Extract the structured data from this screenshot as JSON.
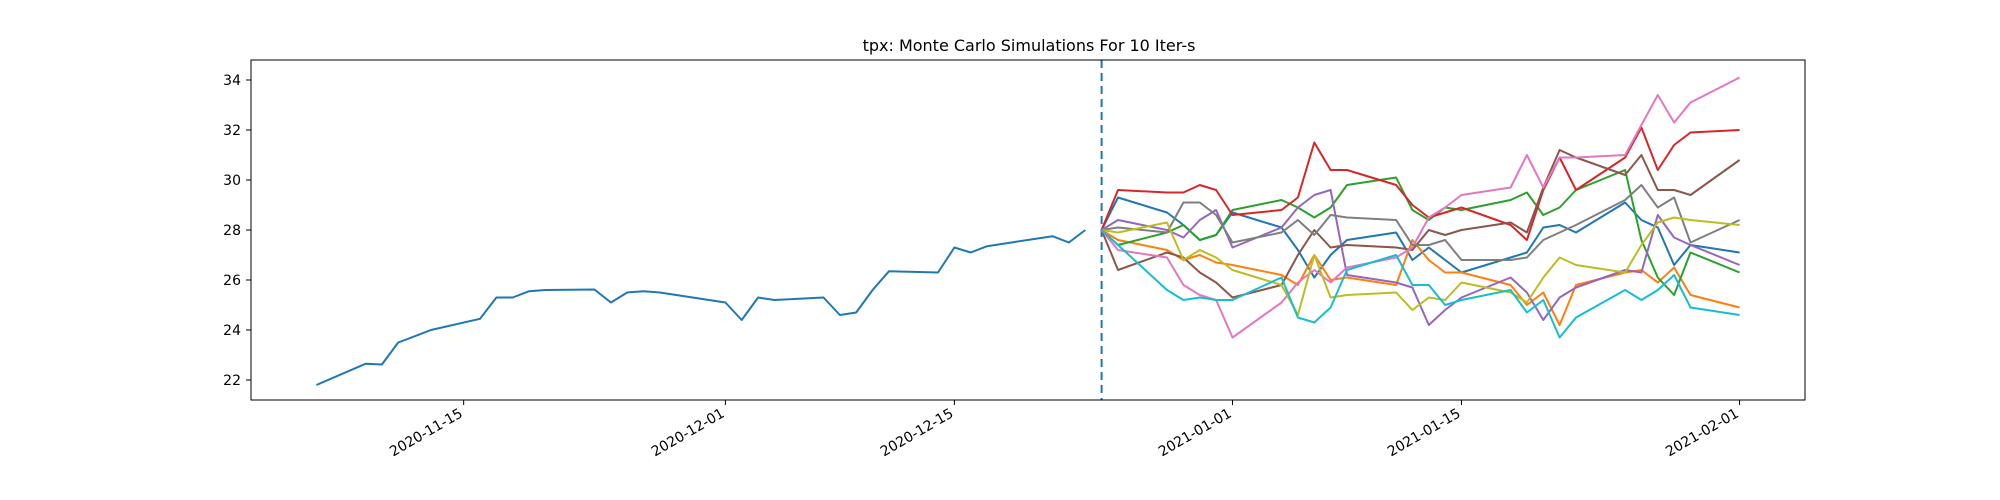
{
  "chart_data": {
    "type": "line",
    "title": "tpx: Monte Carlo Simulations For 10 Iter-s",
    "xlabel": "",
    "ylabel": "",
    "x_axis_type": "date",
    "xlim": [
      "2020-11-02",
      "2021-02-05"
    ],
    "ylim": [
      21.2,
      34.8
    ],
    "x_ticks": [
      "2020-11-15",
      "2020-12-01",
      "2020-12-15",
      "2021-01-01",
      "2021-01-15",
      "2021-02-01"
    ],
    "y_ticks": [
      22,
      24,
      26,
      28,
      30,
      32,
      34
    ],
    "grid": false,
    "legend": false,
    "vline": {
      "x": "2020-12-24",
      "style": "dashed",
      "color": "#1f77b4"
    },
    "history": {
      "color": "#1f77b4",
      "points": [
        [
          "2020-11-06",
          21.8
        ],
        [
          "2020-11-09",
          22.65
        ],
        [
          "2020-11-10",
          22.62
        ],
        [
          "2020-11-11",
          23.5
        ],
        [
          "2020-11-12",
          23.75
        ],
        [
          "2020-11-13",
          24.0
        ],
        [
          "2020-11-16",
          24.45
        ],
        [
          "2020-11-17",
          25.3
        ],
        [
          "2020-11-18",
          25.3
        ],
        [
          "2020-11-19",
          25.55
        ],
        [
          "2020-11-20",
          25.6
        ],
        [
          "2020-11-23",
          25.62
        ],
        [
          "2020-11-24",
          25.1
        ],
        [
          "2020-11-25",
          25.5
        ],
        [
          "2020-11-26",
          25.55
        ],
        [
          "2020-11-27",
          25.5
        ],
        [
          "2020-11-30",
          25.2
        ],
        [
          "2020-12-01",
          25.1
        ],
        [
          "2020-12-02",
          24.4
        ],
        [
          "2020-12-03",
          25.3
        ],
        [
          "2020-12-04",
          25.2
        ],
        [
          "2020-12-07",
          25.3
        ],
        [
          "2020-12-08",
          24.6
        ],
        [
          "2020-12-09",
          24.7
        ],
        [
          "2020-12-10",
          25.6
        ],
        [
          "2020-12-11",
          26.35
        ],
        [
          "2020-12-14",
          26.3
        ],
        [
          "2020-12-15",
          27.3
        ],
        [
          "2020-12-16",
          27.1
        ],
        [
          "2020-12-17",
          27.35
        ],
        [
          "2020-12-21",
          27.75
        ],
        [
          "2020-12-22",
          27.5
        ],
        [
          "2020-12-23",
          28.0
        ]
      ]
    },
    "sim_dates": [
      "2020-12-24",
      "2020-12-25",
      "2020-12-28",
      "2020-12-29",
      "2020-12-30",
      "2020-12-31",
      "2021-01-01",
      "2021-01-04",
      "2021-01-05",
      "2021-01-06",
      "2021-01-07",
      "2021-01-08",
      "2021-01-11",
      "2021-01-12",
      "2021-01-13",
      "2021-01-14",
      "2021-01-15",
      "2021-01-18",
      "2021-01-19",
      "2021-01-20",
      "2021-01-21",
      "2021-01-22",
      "2021-01-25",
      "2021-01-26",
      "2021-01-27",
      "2021-01-28",
      "2021-01-29",
      "2021-02-01"
    ],
    "series": [
      {
        "color": "#1f77b4",
        "values": [
          28.0,
          29.3,
          28.7,
          28.2,
          27.6,
          27.8,
          28.7,
          28.1,
          27.2,
          26.1,
          27.0,
          27.6,
          27.9,
          26.8,
          27.3,
          26.8,
          26.3,
          26.9,
          27.1,
          28.1,
          28.2,
          27.9,
          29.1,
          28.4,
          28.1,
          26.6,
          27.4,
          27.1
        ]
      },
      {
        "color": "#ff7f0e",
        "values": [
          28.0,
          27.6,
          27.2,
          26.8,
          27.0,
          26.7,
          26.6,
          26.2,
          25.8,
          27.0,
          26.0,
          26.1,
          25.8,
          27.6,
          26.8,
          26.3,
          26.3,
          25.8,
          25.0,
          25.5,
          24.2,
          25.8,
          26.3,
          26.4,
          25.9,
          26.5,
          25.4,
          24.9
        ]
      },
      {
        "color": "#2ca02c",
        "values": [
          28.0,
          27.4,
          27.9,
          28.2,
          27.6,
          27.8,
          28.8,
          29.2,
          28.9,
          28.5,
          28.9,
          29.8,
          30.1,
          28.8,
          28.4,
          28.9,
          28.8,
          29.2,
          29.5,
          28.6,
          28.9,
          29.6,
          30.4,
          27.6,
          26.1,
          25.4,
          27.1,
          26.3
        ]
      },
      {
        "color": "#d62728",
        "values": [
          28.0,
          29.6,
          29.5,
          29.5,
          29.8,
          29.6,
          28.6,
          28.8,
          29.3,
          31.5,
          30.4,
          30.4,
          29.8,
          29.0,
          28.5,
          28.7,
          28.9,
          28.2,
          27.6,
          29.6,
          30.9,
          29.6,
          30.9,
          32.1,
          30.4,
          31.4,
          31.9,
          32.0
        ]
      },
      {
        "color": "#9467bd",
        "values": [
          28.0,
          28.4,
          28.0,
          27.7,
          28.4,
          28.8,
          27.3,
          28.1,
          28.9,
          29.4,
          29.6,
          26.2,
          25.9,
          25.7,
          24.2,
          24.8,
          25.3,
          26.1,
          25.5,
          24.4,
          25.3,
          25.7,
          26.4,
          26.3,
          28.6,
          27.7,
          27.4,
          26.6
        ]
      },
      {
        "color": "#8c564b",
        "values": [
          28.0,
          26.4,
          27.1,
          26.9,
          26.3,
          25.9,
          25.3,
          25.8,
          27.0,
          28.0,
          27.3,
          27.4,
          27.3,
          27.2,
          28.0,
          27.8,
          28.0,
          28.3,
          27.9,
          29.7,
          31.2,
          30.9,
          30.2,
          31.0,
          29.6,
          29.6,
          29.4,
          30.8
        ]
      },
      {
        "color": "#e377c2",
        "values": [
          28.0,
          27.2,
          26.9,
          25.8,
          25.4,
          25.2,
          23.7,
          25.1,
          25.9,
          26.4,
          25.9,
          26.5,
          26.9,
          27.3,
          28.5,
          28.9,
          29.4,
          29.7,
          31.0,
          29.7,
          30.9,
          30.9,
          31.0,
          32.2,
          33.4,
          32.3,
          33.1,
          34.1
        ]
      },
      {
        "color": "#7f7f7f",
        "values": [
          28.0,
          28.1,
          27.9,
          29.1,
          29.1,
          28.6,
          27.5,
          27.9,
          28.4,
          27.8,
          28.6,
          28.5,
          28.4,
          27.4,
          27.4,
          27.6,
          26.8,
          26.8,
          26.9,
          27.6,
          27.9,
          28.2,
          29.2,
          29.8,
          28.9,
          29.3,
          27.5,
          28.4
        ]
      },
      {
        "color": "#bcbd22",
        "values": [
          28.0,
          27.9,
          28.3,
          26.8,
          27.2,
          26.9,
          26.4,
          25.8,
          24.6,
          27.0,
          25.3,
          25.4,
          25.5,
          24.8,
          25.3,
          25.2,
          25.9,
          25.5,
          25.1,
          26.1,
          26.9,
          26.6,
          26.3,
          27.4,
          28.3,
          28.5,
          28.4,
          28.2
        ]
      },
      {
        "color": "#17becf",
        "values": [
          28.0,
          27.4,
          25.6,
          25.2,
          25.3,
          25.2,
          25.2,
          26.1,
          24.5,
          24.3,
          24.9,
          26.4,
          27.0,
          25.8,
          25.8,
          25.0,
          25.2,
          25.6,
          24.7,
          25.2,
          23.7,
          24.5,
          25.6,
          25.2,
          25.6,
          26.2,
          24.9,
          24.6
        ]
      }
    ]
  }
}
